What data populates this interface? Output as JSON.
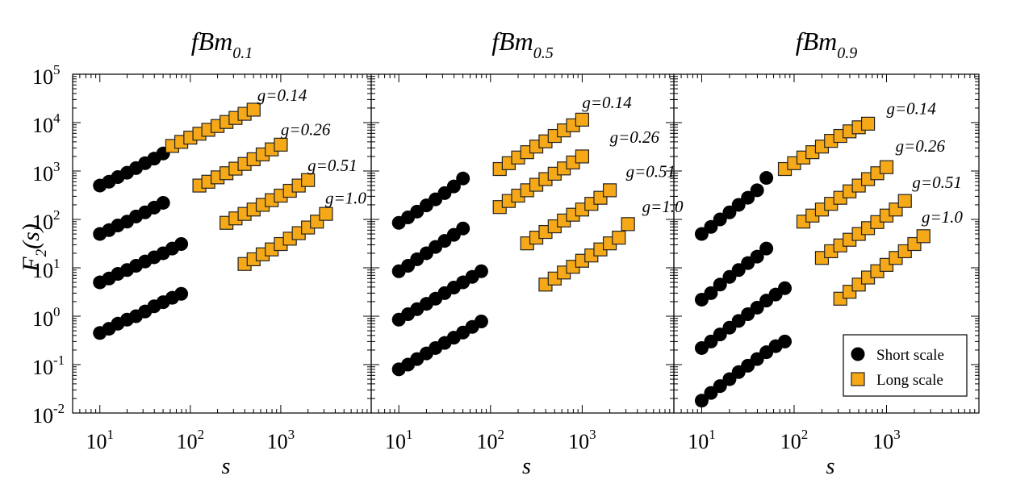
{
  "figure": {
    "y_axis_label": "F",
    "y_axis_label_sub": "2",
    "y_axis_label_tail": "(s)",
    "x_axis_label": "s"
  },
  "chart_data": [
    {
      "type": "scatter",
      "title": "fBm",
      "title_sub": "0.1",
      "xscale": "log",
      "yscale": "log",
      "xlim": [
        5,
        10000
      ],
      "ylim": [
        0.01,
        100000
      ],
      "x_ticks": [
        {
          "base": "10",
          "exp": "1",
          "value": 10
        },
        {
          "base": "10",
          "exp": "2",
          "value": 100
        },
        {
          "base": "10",
          "exp": "3",
          "value": 1000
        }
      ],
      "y_ticks": [
        {
          "base": "10",
          "exp": "-2",
          "value": 0.01
        },
        {
          "base": "10",
          "exp": "-1",
          "value": 0.1
        },
        {
          "base": "10",
          "exp": "0",
          "value": 1
        },
        {
          "base": "10",
          "exp": "1",
          "value": 10
        },
        {
          "base": "10",
          "exp": "2",
          "value": 100
        },
        {
          "base": "10",
          "exp": "3",
          "value": 1000
        },
        {
          "base": "10",
          "exp": "4",
          "value": 10000
        },
        {
          "base": "10",
          "exp": "5",
          "value": 100000
        }
      ],
      "series": [
        {
          "name": "Short scale",
          "group": "g=0.14",
          "x": [
            10,
            12.6,
            15.8,
            20,
            25.1,
            31.6,
            39.8,
            50.1
          ],
          "y": [
            500,
            600,
            750,
            920,
            1150,
            1450,
            1800,
            2300
          ]
        },
        {
          "name": "Short scale",
          "group": "g=0.26",
          "x": [
            10,
            12.6,
            15.8,
            20,
            25.1,
            31.6,
            39.8,
            50.1
          ],
          "y": [
            50,
            60,
            75,
            90,
            115,
            140,
            175,
            220
          ]
        },
        {
          "name": "Short scale",
          "group": "g=0.51",
          "x": [
            10,
            12.6,
            15.8,
            20,
            25.1,
            31.6,
            39.8,
            50.1,
            63.1,
            79.4
          ],
          "y": [
            5,
            6,
            7.5,
            9,
            11,
            13.5,
            16.5,
            20,
            25,
            31
          ]
        },
        {
          "name": "Short scale",
          "group": "g=1.0",
          "x": [
            10,
            12.6,
            15.8,
            20,
            25.1,
            31.6,
            39.8,
            50.1,
            63.1,
            79.4
          ],
          "y": [
            0.45,
            0.55,
            0.7,
            0.85,
            1.0,
            1.25,
            1.6,
            1.95,
            2.4,
            2.9
          ]
        },
        {
          "name": "Long scale",
          "group": "g=0.14",
          "x": [
            63.1,
            79.4,
            100,
            126,
            158,
            200,
            251,
            316,
            398,
            501
          ],
          "y": [
            3300,
            4000,
            4900,
            5900,
            7100,
            8500,
            10300,
            12500,
            15200,
            18500
          ]
        },
        {
          "name": "Long scale",
          "group": "g=0.26",
          "x": [
            126,
            158,
            200,
            251,
            316,
            398,
            501,
            631,
            794,
            1000
          ],
          "y": [
            500,
            600,
            740,
            900,
            1120,
            1400,
            1750,
            2200,
            2800,
            3500
          ]
        },
        {
          "name": "Long scale",
          "group": "g=0.51",
          "x": [
            251,
            316,
            398,
            501,
            631,
            794,
            1000,
            1260,
            1580,
            2000
          ],
          "y": [
            85,
            105,
            130,
            160,
            200,
            250,
            310,
            390,
            500,
            650
          ]
        },
        {
          "name": "Long scale",
          "group": "g=1.0",
          "x": [
            398,
            501,
            631,
            794,
            1000,
            1260,
            1580,
            2000,
            2510,
            3160
          ],
          "y": [
            12,
            15,
            19,
            24,
            31,
            40,
            52,
            68,
            90,
            130
          ]
        }
      ],
      "annotations": [
        {
          "text": "g=0.14",
          "x": 550,
          "y": 28000
        },
        {
          "text": "g=0.26",
          "x": 1000,
          "y": 5500
        },
        {
          "text": "g=0.51",
          "x": 1980,
          "y": 1000
        },
        {
          "text": "g=1.0",
          "x": 3100,
          "y": 210
        }
      ]
    },
    {
      "type": "scatter",
      "title": "fBm",
      "title_sub": "0.5",
      "xscale": "log",
      "yscale": "log",
      "xlim": [
        5,
        10000
      ],
      "ylim": [
        0.01,
        100000
      ],
      "x_ticks": [
        {
          "base": "10",
          "exp": "1",
          "value": 10
        },
        {
          "base": "10",
          "exp": "2",
          "value": 100
        },
        {
          "base": "10",
          "exp": "3",
          "value": 1000
        }
      ],
      "series": [
        {
          "name": "Short scale",
          "group": "g=0.14",
          "x": [
            10,
            12.6,
            15.8,
            20,
            25.1,
            31.6,
            39.8,
            50.1
          ],
          "y": [
            85,
            110,
            145,
            195,
            260,
            350,
            480,
            700
          ]
        },
        {
          "name": "Short scale",
          "group": "g=0.26",
          "x": [
            10,
            12.6,
            15.8,
            20,
            25.1,
            31.6,
            39.8,
            50.1
          ],
          "y": [
            8.5,
            11,
            15,
            20,
            27,
            36,
            48,
            65
          ]
        },
        {
          "name": "Short scale",
          "group": "g=0.51",
          "x": [
            10,
            12.6,
            15.8,
            20,
            25.1,
            31.6,
            39.8,
            50.1,
            63.1,
            79.4
          ],
          "y": [
            0.85,
            1.1,
            1.4,
            1.8,
            2.3,
            3.0,
            3.9,
            5.0,
            6.5,
            8.5
          ]
        },
        {
          "name": "Short scale",
          "group": "g=1.0",
          "x": [
            10,
            12.6,
            15.8,
            20,
            25.1,
            31.6,
            39.8,
            50.1,
            63.1,
            79.4
          ],
          "y": [
            0.08,
            0.1,
            0.13,
            0.17,
            0.22,
            0.28,
            0.36,
            0.46,
            0.6,
            0.78
          ]
        },
        {
          "name": "Long scale",
          "group": "g=0.14",
          "x": [
            126,
            158,
            200,
            251,
            316,
            398,
            501,
            631,
            794,
            1000
          ],
          "y": [
            1100,
            1450,
            1900,
            2450,
            3200,
            4100,
            5300,
            6900,
            8800,
            11500
          ]
        },
        {
          "name": "Long scale",
          "group": "g=0.26",
          "x": [
            126,
            158,
            200,
            251,
            316,
            398,
            501,
            631,
            794,
            1000
          ],
          "y": [
            180,
            240,
            310,
            400,
            520,
            680,
            880,
            1130,
            1500,
            2000
          ]
        },
        {
          "name": "Long scale",
          "group": "g=0.51",
          "x": [
            251,
            316,
            398,
            501,
            631,
            794,
            1000,
            1260,
            1580,
            2000
          ],
          "y": [
            32,
            42,
            55,
            72,
            95,
            125,
            160,
            210,
            280,
            400
          ]
        },
        {
          "name": "Long scale",
          "group": "g=1.0",
          "x": [
            398,
            501,
            631,
            794,
            1000,
            1260,
            1580,
            2000,
            2510,
            3160
          ],
          "y": [
            4.5,
            6,
            8,
            10.5,
            14,
            18,
            24,
            32,
            42,
            80
          ]
        }
      ],
      "annotations": [
        {
          "text": "g=0.14",
          "x": 1000,
          "y": 20000
        },
        {
          "text": "g=0.26",
          "x": 2000,
          "y": 3800
        },
        {
          "text": "g=0.51",
          "x": 3000,
          "y": 750
        },
        {
          "text": "g=1.0",
          "x": 4500,
          "y": 140
        }
      ]
    },
    {
      "type": "scatter",
      "title": "fBm",
      "title_sub": "0.9",
      "xscale": "log",
      "yscale": "log",
      "xlim": [
        5,
        10000
      ],
      "ylim": [
        0.01,
        100000
      ],
      "x_ticks": [
        {
          "base": "10",
          "exp": "1",
          "value": 10
        },
        {
          "base": "10",
          "exp": "2",
          "value": 100
        },
        {
          "base": "10",
          "exp": "3",
          "value": 1000
        }
      ],
      "legend": {
        "position": "bottom-right",
        "entries": [
          "Short scale",
          "Long scale"
        ]
      },
      "series": [
        {
          "name": "Short scale",
          "group": "g=0.14",
          "x": [
            10,
            12.6,
            15.8,
            20,
            25.1,
            31.6,
            39.8,
            50.1
          ],
          "y": [
            50,
            70,
            100,
            140,
            200,
            280,
            400,
            720
          ]
        },
        {
          "name": "Short scale",
          "group": "g=0.26",
          "x": [
            10,
            12.6,
            15.8,
            20,
            25.1,
            31.6,
            39.8,
            50.1
          ],
          "y": [
            2.2,
            3,
            4.5,
            6.5,
            9,
            12.5,
            17,
            25
          ]
        },
        {
          "name": "Short scale",
          "group": "g=0.51",
          "x": [
            10,
            12.6,
            15.8,
            20,
            25.1,
            31.6,
            39.8,
            50.1,
            63.1,
            79.4
          ],
          "y": [
            0.22,
            0.3,
            0.42,
            0.58,
            0.8,
            1.1,
            1.5,
            2.1,
            2.8,
            3.8
          ]
        },
        {
          "name": "Short scale",
          "group": "g=1.0",
          "x": [
            10,
            12.6,
            15.8,
            20,
            25.1,
            31.6,
            39.8,
            50.1,
            63.1,
            79.4
          ],
          "y": [
            0.018,
            0.026,
            0.036,
            0.05,
            0.07,
            0.095,
            0.13,
            0.18,
            0.24,
            0.3
          ]
        },
        {
          "name": "Long scale",
          "group": "g=0.14",
          "x": [
            79.4,
            100,
            126,
            158,
            200,
            251,
            316,
            398,
            501,
            631
          ],
          "y": [
            1100,
            1450,
            1900,
            2450,
            3200,
            4200,
            5300,
            6600,
            8000,
            9500
          ]
        },
        {
          "name": "Long scale",
          "group": "g=0.26",
          "x": [
            126,
            158,
            200,
            251,
            316,
            398,
            501,
            631,
            794,
            1000
          ],
          "y": [
            90,
            120,
            160,
            210,
            280,
            380,
            500,
            680,
            900,
            1200
          ]
        },
        {
          "name": "Long scale",
          "group": "g=0.51",
          "x": [
            200,
            251,
            316,
            398,
            501,
            631,
            794,
            1000,
            1260,
            1580
          ],
          "y": [
            16,
            22,
            29,
            38,
            50,
            66,
            88,
            120,
            160,
            240
          ]
        },
        {
          "name": "Long scale",
          "group": "g=1.0",
          "x": [
            316,
            398,
            501,
            631,
            794,
            1000,
            1260,
            1580,
            2000,
            2510
          ],
          "y": [
            2.3,
            3.2,
            4.5,
            6.3,
            8.5,
            11.5,
            16,
            22,
            31,
            45
          ]
        }
      ],
      "annotations": [
        {
          "text": "g=0.14",
          "x": 1000,
          "y": 15000
        },
        {
          "text": "g=0.26",
          "x": 1250,
          "y": 2500
        },
        {
          "text": "g=0.51",
          "x": 1900,
          "y": 450
        },
        {
          "text": "g=1.0",
          "x": 2400,
          "y": 85
        }
      ]
    }
  ]
}
